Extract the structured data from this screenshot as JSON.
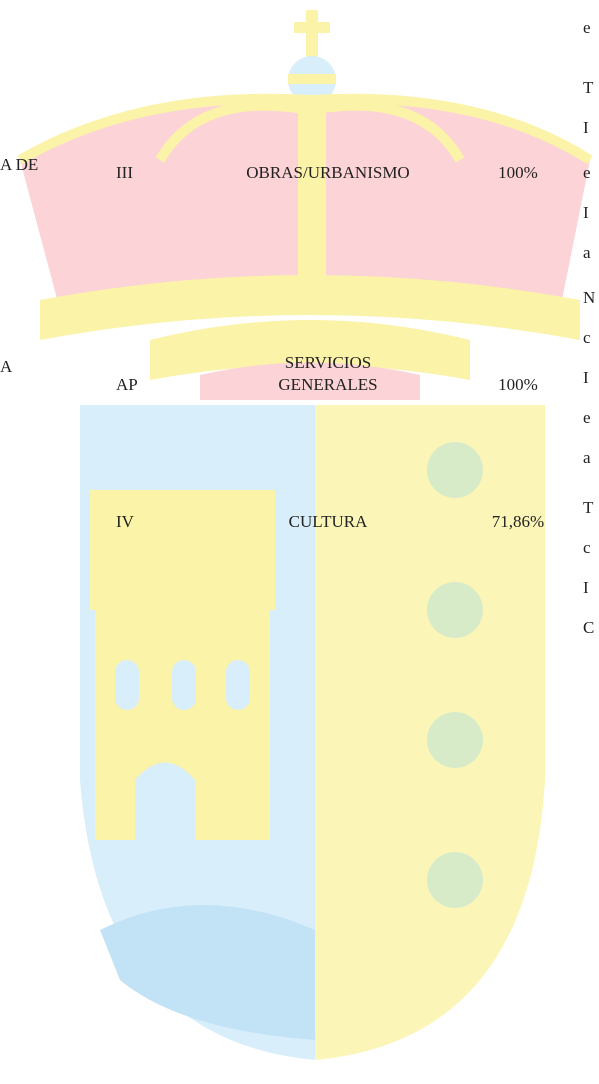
{
  "left_fragments": [
    "A DE",
    "A"
  ],
  "table": {
    "rows": [
      [
        "III",
        "OBRAS/URBANISMO",
        "100%"
      ],
      [
        "AP",
        "SERVICIOS GENERALES",
        "100%"
      ],
      [
        "IV",
        "CULTURA",
        "71,86%"
      ]
    ]
  },
  "right_fragments": [
    "e",
    "T",
    "I",
    "e",
    "I",
    "a",
    "N",
    "c",
    "I",
    "e",
    "a",
    "T",
    "c",
    "I",
    "C"
  ]
}
